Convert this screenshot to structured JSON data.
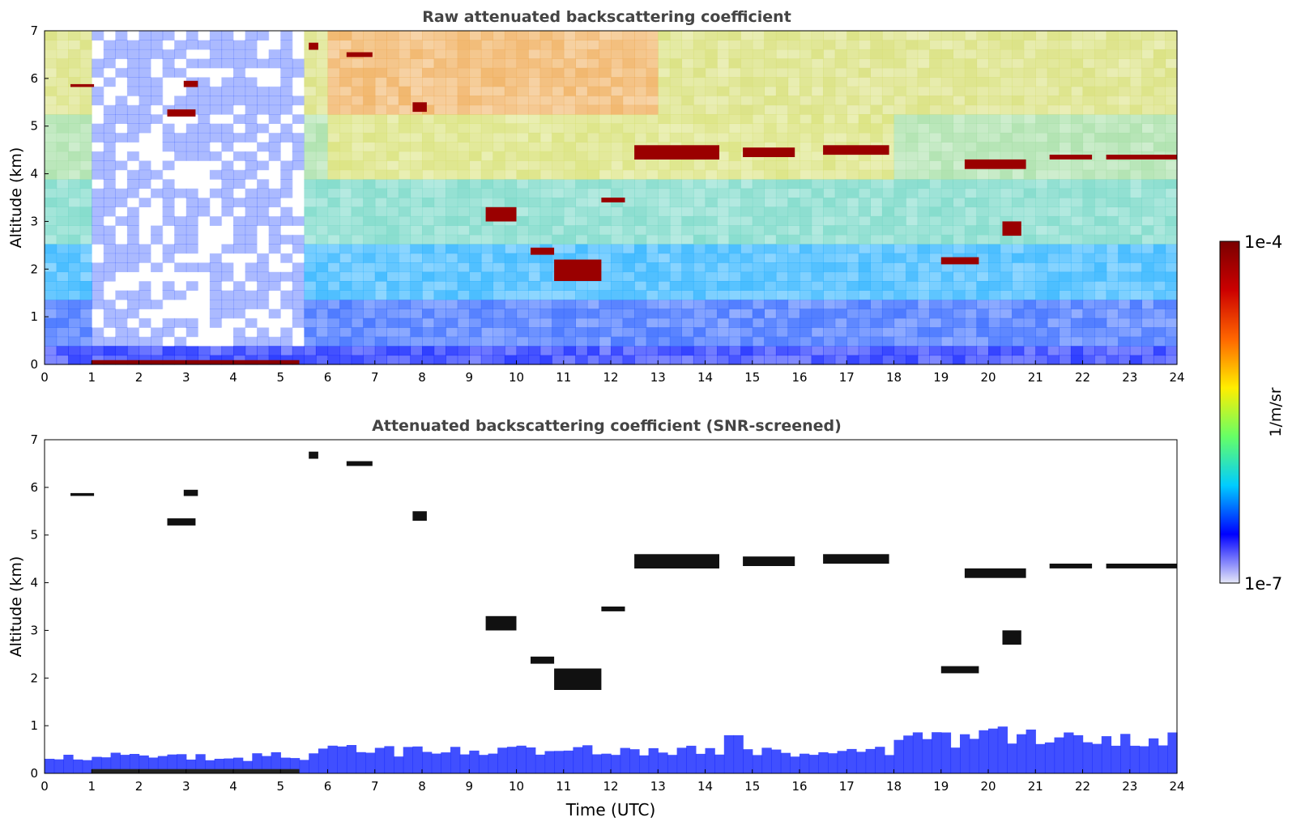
{
  "chart_data": [
    {
      "type": "heatmap",
      "title": "Raw attenuated backscattering coefficient",
      "xlabel": "",
      "ylabel": "Altitude (km)",
      "xlim": [
        0,
        24
      ],
      "ylim": [
        0,
        7
      ],
      "xticks": [
        "0",
        "1",
        "2",
        "3",
        "4",
        "5",
        "6",
        "7",
        "8",
        "9",
        "10",
        "11",
        "12",
        "13",
        "14",
        "15",
        "16",
        "17",
        "18",
        "19",
        "20",
        "21",
        "22",
        "23",
        "24"
      ],
      "yticks": [
        "0",
        "1",
        "2",
        "3",
        "4",
        "5",
        "6",
        "7"
      ],
      "grid": false,
      "background_signal": "noisy, increasing with altitude; near-surface layer below 0.5 km",
      "features": [
        {
          "x": [
            0.55,
            1.05
          ],
          "y": [
            5.82,
            5.88
          ]
        },
        {
          "x": [
            2.6,
            3.2
          ],
          "y": [
            5.2,
            5.35
          ]
        },
        {
          "x": [
            2.95,
            3.25
          ],
          "y": [
            5.82,
            5.95
          ]
        },
        {
          "x": [
            5.6,
            5.8
          ],
          "y": [
            6.6,
            6.75
          ]
        },
        {
          "x": [
            6.4,
            6.95
          ],
          "y": [
            6.45,
            6.55
          ]
        },
        {
          "x": [
            7.8,
            8.1
          ],
          "y": [
            5.3,
            5.5
          ]
        },
        {
          "x": [
            9.35,
            10.0
          ],
          "y": [
            3.0,
            3.3
          ]
        },
        {
          "x": [
            10.3,
            10.8
          ],
          "y": [
            2.3,
            2.45
          ]
        },
        {
          "x": [
            10.8,
            11.8
          ],
          "y": [
            1.75,
            2.2
          ]
        },
        {
          "x": [
            11.8,
            12.3
          ],
          "y": [
            3.4,
            3.5
          ]
        },
        {
          "x": [
            12.5,
            14.3
          ],
          "y": [
            4.3,
            4.6
          ]
        },
        {
          "x": [
            14.8,
            15.9
          ],
          "y": [
            4.35,
            4.55
          ]
        },
        {
          "x": [
            16.5,
            17.9
          ],
          "y": [
            4.4,
            4.6
          ]
        },
        {
          "x": [
            19.5,
            20.8
          ],
          "y": [
            4.1,
            4.3
          ]
        },
        {
          "x": [
            20.3,
            20.7
          ],
          "y": [
            2.7,
            3.0
          ]
        },
        {
          "x": [
            19.0,
            19.8
          ],
          "y": [
            2.1,
            2.25
          ]
        },
        {
          "x": [
            21.3,
            22.2
          ],
          "y": [
            4.3,
            4.4
          ]
        },
        {
          "x": [
            22.5,
            24.0
          ],
          "y": [
            4.3,
            4.4
          ]
        }
      ]
    },
    {
      "type": "heatmap",
      "title": "Attenuated backscattering coefficient (SNR-screened)",
      "xlabel": "Time (UTC)",
      "ylabel": "Altitude (km)",
      "xlim": [
        0,
        24
      ],
      "ylim": [
        0,
        7
      ],
      "xticks": [
        "0",
        "1",
        "2",
        "3",
        "4",
        "5",
        "6",
        "7",
        "8",
        "9",
        "10",
        "11",
        "12",
        "13",
        "14",
        "15",
        "16",
        "17",
        "18",
        "19",
        "20",
        "21",
        "22",
        "23",
        "24"
      ],
      "yticks": [
        "0",
        "1",
        "2",
        "3",
        "4",
        "5",
        "6",
        "7"
      ],
      "grid": false,
      "background_signal": "screened: only near-surface layer below ~0.5 km and cloud features remain"
    }
  ],
  "colorbar": {
    "label": "1/m/sr",
    "max_label": "1e-4",
    "min_label": "1e-7",
    "scale": "log",
    "colormap": "jet",
    "colors": [
      "#e6e8f8",
      "#0000ff",
      "#00ccff",
      "#66ff66",
      "#ffee00",
      "#ff6600",
      "#cc0000",
      "#7a0000"
    ]
  }
}
